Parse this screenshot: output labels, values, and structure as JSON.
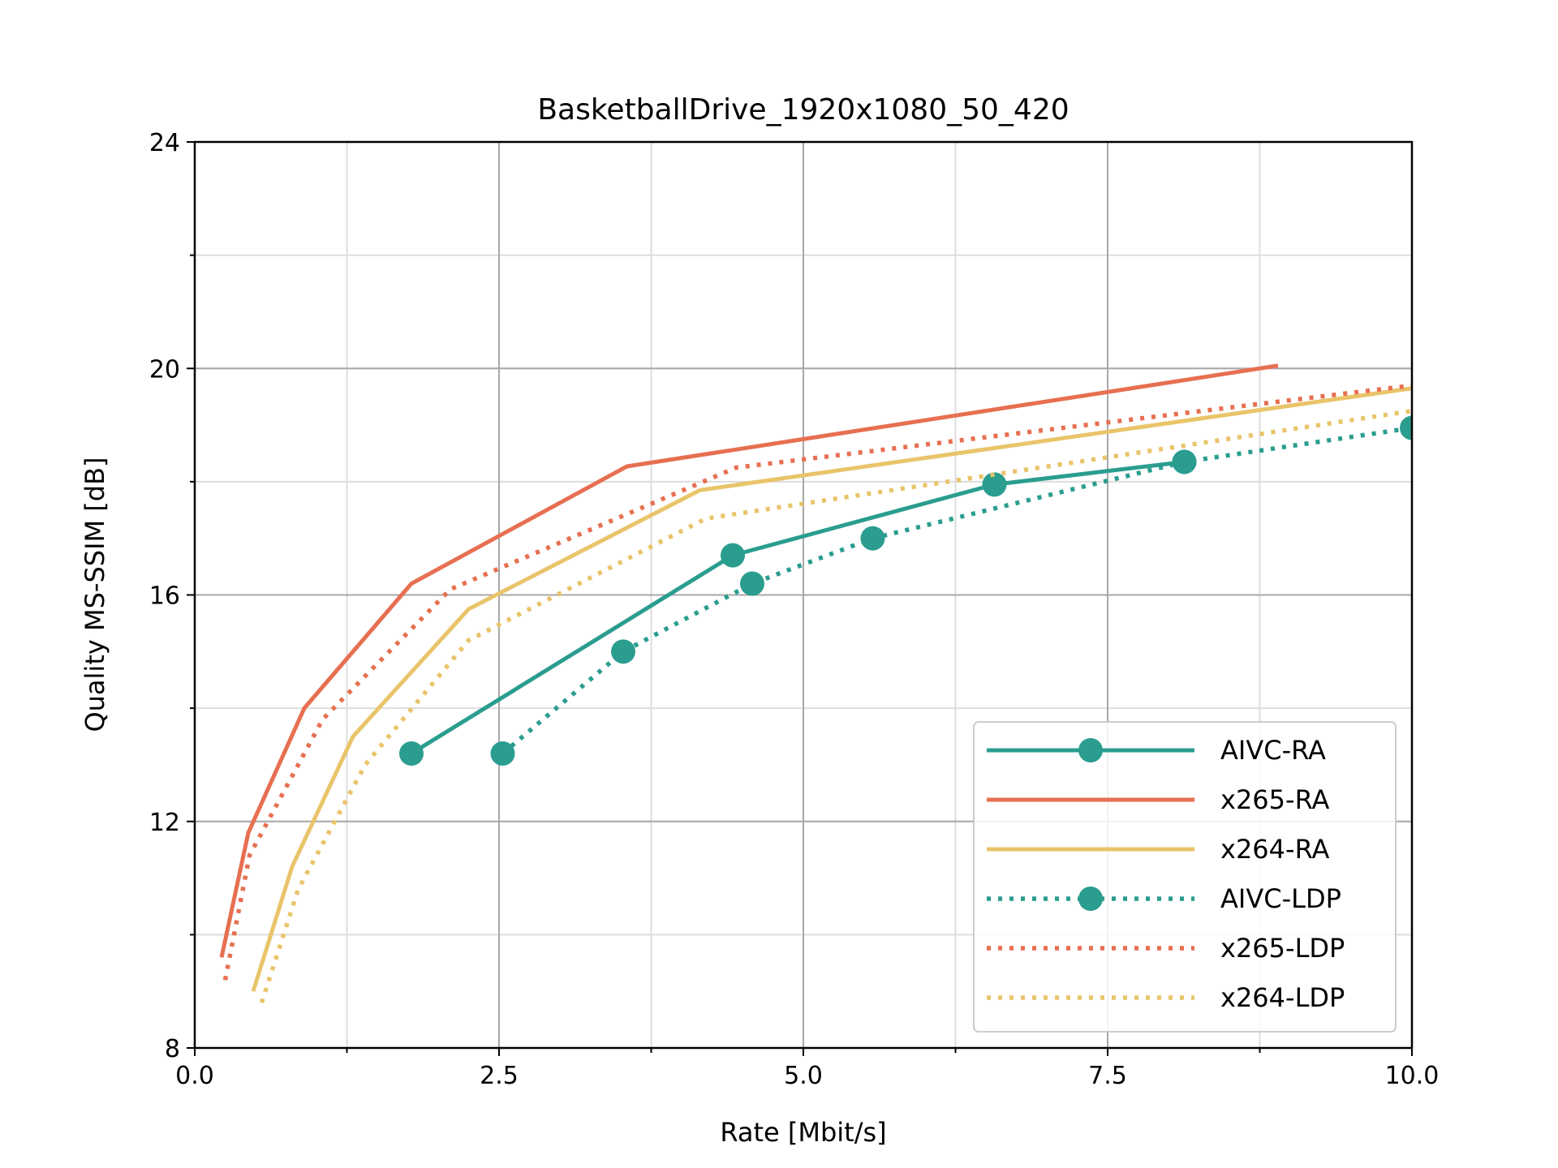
{
  "chart_data": {
    "type": "line",
    "title": "BasketballDrive_1920x1080_50_420",
    "xlabel": "Rate [Mbit/s]",
    "ylabel": "Quality MS-SSIM [dB]",
    "xlim": [
      0,
      10
    ],
    "ylim": [
      8,
      24
    ],
    "xticks": [
      "0.0",
      "2.5",
      "5.0",
      "7.5",
      "10.0"
    ],
    "yticks": [
      "8",
      "12",
      "16",
      "20",
      "24"
    ],
    "grid": true,
    "legend_position": "lower-right",
    "series": [
      {
        "name": "AIVC-RA",
        "color": "#2a9d8f",
        "style": "solid",
        "marker": "circle",
        "x": [
          1.78,
          4.42,
          6.57,
          8.13
        ],
        "y": [
          13.2,
          16.7,
          17.95,
          18.35
        ]
      },
      {
        "name": "x265-RA",
        "color": "#e76f51",
        "style": "solid",
        "marker": "none",
        "x": [
          0.22,
          0.44,
          0.9,
          1.78,
          3.55,
          8.9
        ],
        "y": [
          9.6,
          11.8,
          14.0,
          16.2,
          18.27,
          20.05
        ]
      },
      {
        "name": "x264-RA",
        "color": "#e9c46a",
        "style": "solid",
        "marker": "none",
        "x": [
          0.48,
          0.8,
          1.3,
          2.25,
          4.15,
          10.0
        ],
        "y": [
          9.0,
          11.2,
          13.5,
          15.75,
          17.85,
          19.65
        ]
      },
      {
        "name": "AIVC-LDP",
        "color": "#2a9d8f",
        "style": "dotted",
        "marker": "circle",
        "x": [
          2.53,
          3.52,
          4.58,
          5.57,
          8.13,
          10.0
        ],
        "y": [
          13.2,
          15.0,
          16.2,
          17.0,
          18.35,
          18.95
        ]
      },
      {
        "name": "x265-LDP",
        "color": "#e76f51",
        "style": "dotted",
        "marker": "none",
        "x": [
          0.25,
          0.45,
          1.05,
          2.1,
          4.45,
          10.0
        ],
        "y": [
          9.2,
          11.4,
          13.8,
          16.1,
          18.25,
          19.7
        ]
      },
      {
        "name": "x264-LDP",
        "color": "#e9c46a",
        "style": "dotted",
        "marker": "none",
        "x": [
          0.55,
          0.85,
          1.4,
          2.25,
          4.2,
          10.0
        ],
        "y": [
          8.8,
          10.8,
          13.0,
          15.2,
          17.35,
          19.25
        ]
      }
    ]
  }
}
